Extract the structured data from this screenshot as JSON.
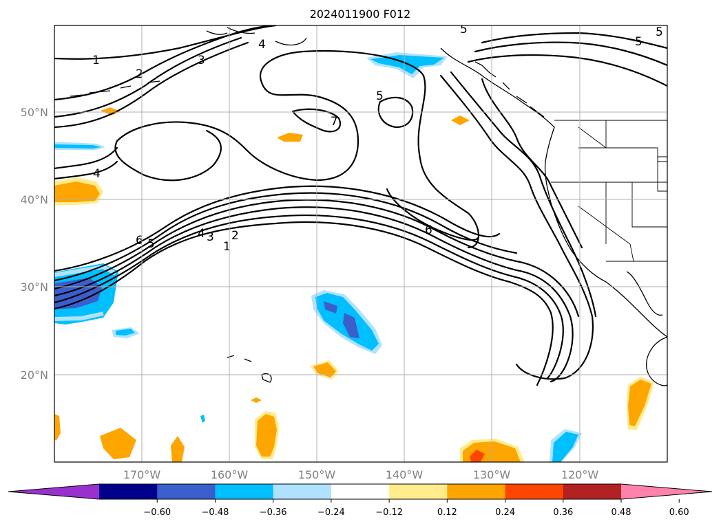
{
  "title": "2024011900 F012",
  "map": {
    "lat_labels": [
      "50°N",
      "40°N",
      "30°N",
      "20°N"
    ],
    "lon_labels": [
      "170°W",
      "160°W",
      "150°W",
      "140°W",
      "130°W",
      "120°W"
    ],
    "gridlines": true
  },
  "colorbar": {
    "extend": "both",
    "colors": [
      "#9932cc",
      "#00008b",
      "#3a5fcd",
      "#00bfff",
      "#b0e2ff",
      "#ffffff",
      "#ffec8b",
      "#ffa500",
      "#ff4500",
      "#b22222",
      "#ff82ab"
    ],
    "tick_labels": [
      "−0.60",
      "−0.48",
      "−0.36",
      "−0.24",
      "−0.12",
      "0.12",
      "0.24",
      "0.36",
      "0.48",
      "0.60"
    ]
  },
  "contour_labels": [
    "1",
    "2",
    "3",
    "4",
    "5",
    "6",
    "7",
    "4",
    "5",
    "6",
    "5",
    "5",
    "6",
    "5",
    "4",
    "3",
    "2",
    "1"
  ]
}
